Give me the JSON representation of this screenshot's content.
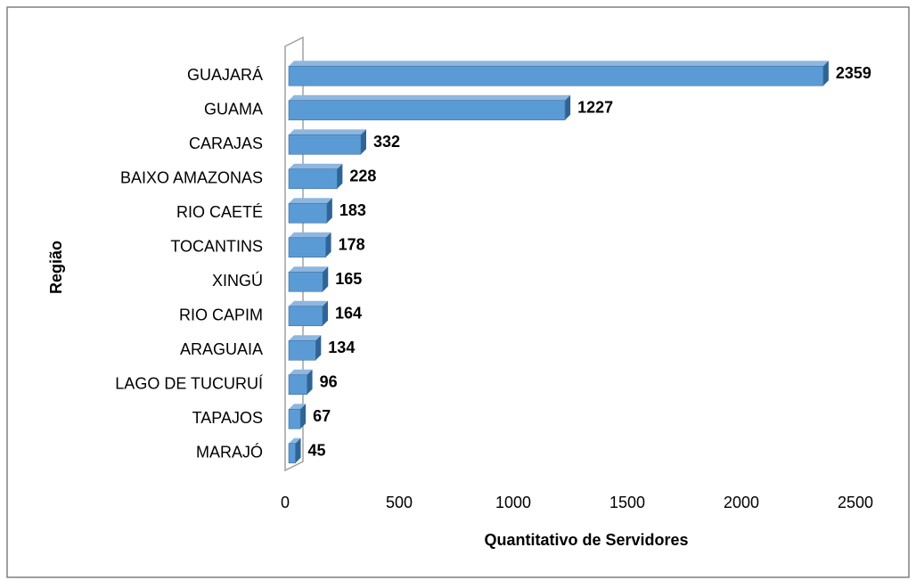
{
  "chart_data": {
    "type": "bar",
    "orientation": "horizontal",
    "xlabel": "Quantitativo de Servidores",
    "ylabel": "Região",
    "categories": [
      "GUAJARÁ",
      "GUAMA",
      "CARAJAS",
      "BAIXO AMAZONAS",
      "RIO CAETÉ",
      "TOCANTINS",
      "XINGÚ",
      "RIO CAPIM",
      "ARAGUAIA",
      "LAGO DE TUCURUÍ",
      "TAPAJOS",
      "MARAJÓ"
    ],
    "values": [
      2359,
      1227,
      332,
      228,
      183,
      178,
      165,
      164,
      134,
      96,
      67,
      45
    ],
    "color": "#5b9bd5",
    "xlim": [
      0,
      2500
    ],
    "xticks": [
      0,
      500,
      1000,
      1500,
      2000,
      2500
    ],
    "grid": false
  }
}
